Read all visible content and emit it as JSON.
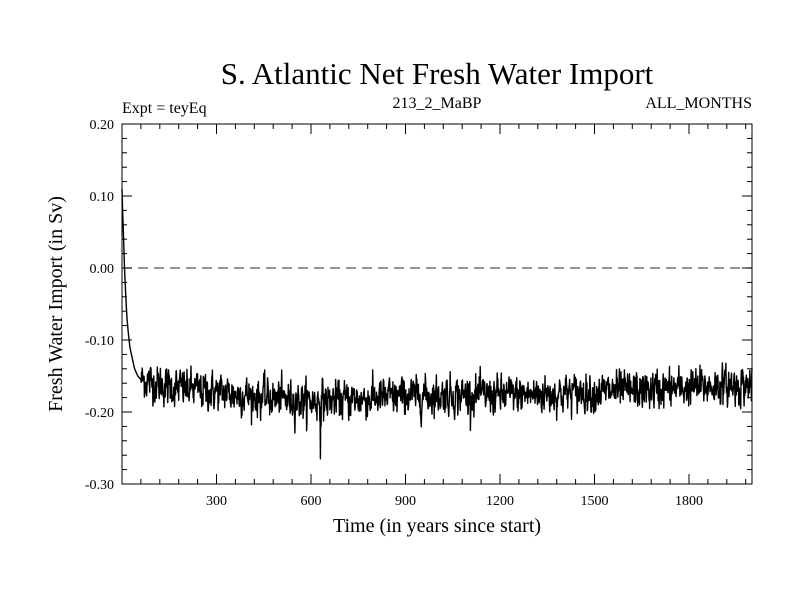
{
  "chart_data": {
    "type": "line",
    "title": "S. Atlantic Net Fresh Water Import",
    "subtitle_left": "Expt = teyEq",
    "subtitle_center": "213_2_MaBP",
    "subtitle_right": "ALL_MONTHS",
    "xlabel": "Time (in years since start)",
    "ylabel": "Fresh Water Import (in Sv)",
    "xlim": [
      0,
      2000
    ],
    "ylim": [
      -0.3,
      0.2
    ],
    "xticks": [
      300,
      600,
      900,
      1200,
      1500,
      1800
    ],
    "xtick_labels": [
      "300",
      "600",
      "900",
      "1200",
      "1500",
      "1800"
    ],
    "yticks": [
      0.2,
      0.1,
      0.0,
      -0.1,
      -0.2,
      -0.3
    ],
    "ytick_labels": [
      "0.20",
      "0.10",
      "0.00",
      "-0.10",
      "-0.20",
      "-0.30"
    ],
    "reference_line": {
      "y": 0.0,
      "style": "dashed",
      "color": "#555555"
    },
    "series": [
      {
        "name": "Net Fresh Water Import",
        "color": "#000000",
        "spinup": {
          "x": [
            0,
            2,
            5,
            8,
            12,
            16,
            20,
            25,
            30,
            40,
            50,
            60
          ],
          "y": [
            0.11,
            0.08,
            0.04,
            0.0,
            -0.04,
            -0.07,
            -0.09,
            -0.11,
            -0.12,
            -0.14,
            -0.15,
            -0.155
          ]
        },
        "trend": {
          "x": [
            60,
            150,
            300,
            450,
            600,
            750,
            900,
            1050,
            1200,
            1350,
            1500,
            1650,
            1800,
            2000
          ],
          "y": [
            -0.155,
            -0.165,
            -0.172,
            -0.18,
            -0.185,
            -0.182,
            -0.178,
            -0.176,
            -0.177,
            -0.175,
            -0.172,
            -0.17,
            -0.166,
            -0.162
          ]
        },
        "noise_amplitude": 0.025,
        "min_point": {
          "x": 630,
          "y": -0.265
        }
      }
    ]
  }
}
